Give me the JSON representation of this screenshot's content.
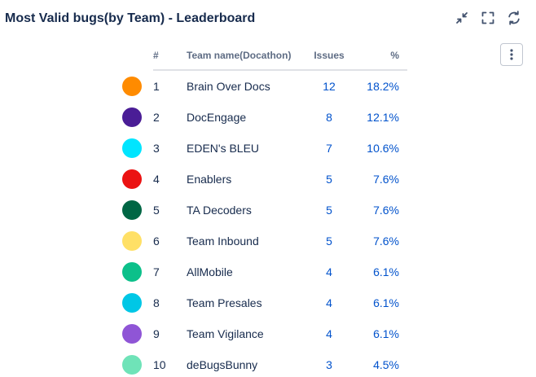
{
  "gadget": {
    "title": "Most Valid bugs(by Team) - Leaderboard",
    "actions": {
      "minimize": "minimize-icon",
      "fullscreen": "fullscreen-icon",
      "refresh": "refresh-icon",
      "more": "more-icon"
    }
  },
  "table": {
    "columns": {
      "rank": "#",
      "team": "Team name(Docathon)",
      "issues": "Issues",
      "percent": "%"
    },
    "rows": [
      {
        "color": "#ff8b00",
        "rank": "1",
        "team": "Brain Over Docs",
        "issues": "12",
        "percent": "18.2%"
      },
      {
        "color": "#4a1d96",
        "rank": "2",
        "team": "DocEngage",
        "issues": "8",
        "percent": "12.1%"
      },
      {
        "color": "#00e5ff",
        "rank": "3",
        "team": "EDEN's BLEU",
        "issues": "7",
        "percent": "10.6%"
      },
      {
        "color": "#eb1212",
        "rank": "4",
        "team": "Enablers",
        "issues": "5",
        "percent": "7.6%"
      },
      {
        "color": "#006644",
        "rank": "5",
        "team": "TA Decoders",
        "issues": "5",
        "percent": "7.6%"
      },
      {
        "color": "#ffe066",
        "rank": "6",
        "team": "Team Inbound",
        "issues": "5",
        "percent": "7.6%"
      },
      {
        "color": "#0cc08a",
        "rank": "7",
        "team": "AllMobile",
        "issues": "4",
        "percent": "6.1%"
      },
      {
        "color": "#00c7e6",
        "rank": "8",
        "team": "Team Presales",
        "issues": "4",
        "percent": "6.1%"
      },
      {
        "color": "#8f55d6",
        "rank": "9",
        "team": "Team Vigilance",
        "issues": "4",
        "percent": "6.1%"
      },
      {
        "color": "#6fe3b8",
        "rank": "10",
        "team": "deBugsBunny",
        "issues": "3",
        "percent": "4.5%"
      }
    ]
  }
}
